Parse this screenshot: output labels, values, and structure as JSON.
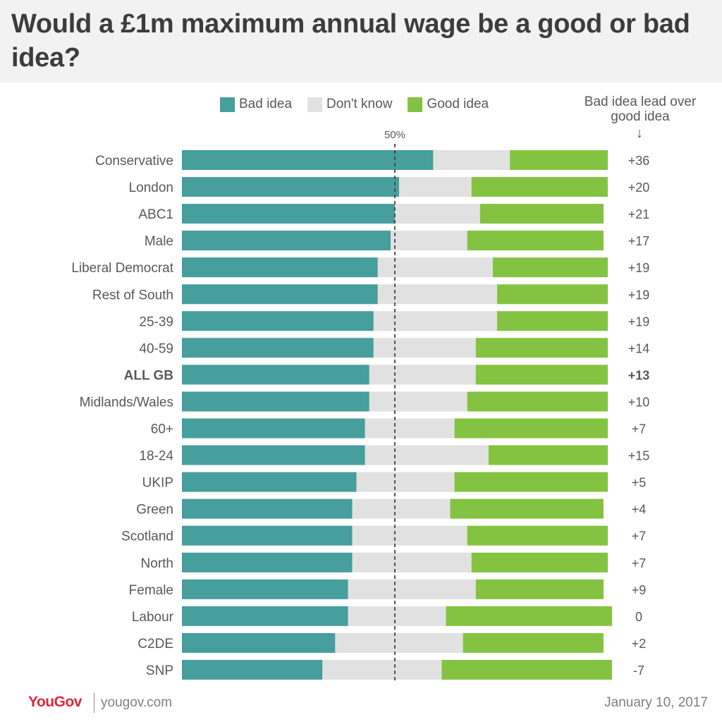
{
  "title": "Would a £1m maximum annual wage be a good or bad idea?",
  "legend": {
    "bad": "Bad idea",
    "dontknow": "Don't know",
    "good": "Good idea"
  },
  "lead_header": "Bad idea lead over good idea",
  "lead_arrow": "↓",
  "colors": {
    "bad": "#469e9d",
    "dontknow": "#e1e1e1",
    "good": "#84c341"
  },
  "chart_data": {
    "type": "bar",
    "stacked": true,
    "orientation": "horizontal",
    "reference_line": {
      "value": 50,
      "label": "50%"
    },
    "categories": [
      "Conservative",
      "London",
      "ABC1",
      "Male",
      "Liberal Democrat",
      "Rest of South",
      "25-39",
      "40-59",
      "ALL GB",
      "Midlands/Wales",
      "60+",
      "18-24",
      "UKIP",
      "Green",
      "Scotland",
      "North",
      "Female",
      "Labour",
      "C2DE",
      "SNP"
    ],
    "series": [
      {
        "name": "Bad idea",
        "values": [
          59,
          51,
          50,
          49,
          46,
          46,
          45,
          45,
          44,
          44,
          43,
          43,
          41,
          40,
          40,
          40,
          39,
          39,
          36,
          33
        ]
      },
      {
        "name": "Don't know",
        "values": [
          18,
          17,
          20,
          18,
          27,
          28,
          29,
          24,
          25,
          23,
          21,
          29,
          23,
          23,
          27,
          28,
          30,
          23,
          30,
          28
        ]
      },
      {
        "name": "Good idea",
        "values": [
          23,
          32,
          29,
          32,
          27,
          26,
          26,
          31,
          31,
          33,
          36,
          28,
          36,
          36,
          33,
          32,
          30,
          39,
          33,
          40
        ]
      }
    ],
    "lead": [
      "+36",
      "+20",
      "+21",
      "+17",
      "+19",
      "+19",
      "+19",
      "+14",
      "+13",
      "+10",
      "+7",
      "+15",
      "+5",
      "+4",
      "+7",
      "+7",
      "+9",
      "0",
      "+2",
      "-7"
    ],
    "highlight": "ALL GB"
  },
  "footer": {
    "logo": "YouGov",
    "url": "yougov.com",
    "date": "January 10, 2017"
  }
}
